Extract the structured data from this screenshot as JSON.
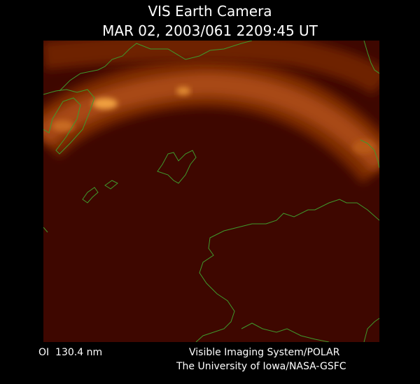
{
  "header": {
    "title": "VIS Earth Camera",
    "timestamp": "MAR 02, 2003/061 2209:45 UT"
  },
  "footer": {
    "wavelength": "OI  130.4 nm",
    "instrument": "Visible Imaging System/POLAR",
    "institution": "The University of Iowa/NASA-GSFC"
  }
}
